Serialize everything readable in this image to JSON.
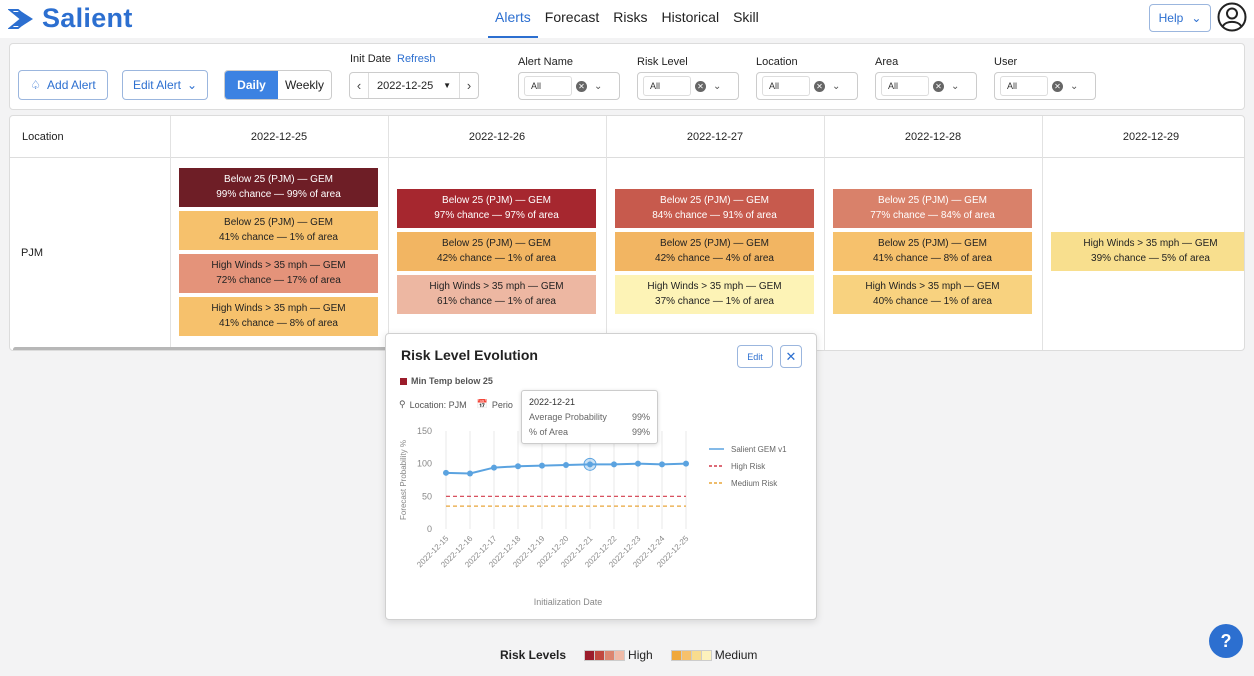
{
  "app": {
    "brand": "Salient",
    "accent": "#2c6fd0"
  },
  "nav": {
    "items": [
      "Alerts",
      "Forecast",
      "Risks",
      "Historical",
      "Skill"
    ],
    "active": "Alerts"
  },
  "header": {
    "help_label": "Help"
  },
  "toolbar": {
    "add_alert": "Add Alert",
    "edit_alert": "Edit Alert",
    "daily": "Daily",
    "weekly": "Weekly",
    "init_date_label": "Init Date",
    "refresh": "Refresh",
    "init_date_value": "2022-12-25",
    "filters": [
      {
        "label": "Alert Name",
        "value": "All"
      },
      {
        "label": "Risk Level",
        "value": "All"
      },
      {
        "label": "Location",
        "value": "All"
      },
      {
        "label": "Area",
        "value": "All"
      },
      {
        "label": "User",
        "value": "All"
      }
    ]
  },
  "table": {
    "location_header": "Location",
    "dates": [
      "2022-12-25",
      "2022-12-26",
      "2022-12-27",
      "2022-12-28",
      "2022-12-29"
    ],
    "row_location": "PJM",
    "cells": [
      [
        {
          "title": "Below 25 (PJM) — GEM",
          "detail": "99% chance — 99% of area",
          "bg": "#6e1e26",
          "fg": "#ffffff"
        },
        {
          "title": "Below 25 (PJM) — GEM",
          "detail": "41% chance — 1% of area",
          "bg": "#f6c16c",
          "fg": "#222222"
        },
        {
          "title": "High Winds > 35 mph — GEM",
          "detail": "72% chance — 17% of area",
          "bg": "#e4937a",
          "fg": "#222222"
        },
        {
          "title": "High Winds > 35 mph — GEM",
          "detail": "41% chance — 8% of area",
          "bg": "#f6c16c",
          "fg": "#222222"
        }
      ],
      [
        {
          "title": "Below 25 (PJM) — GEM",
          "detail": "97% chance — 97% of area",
          "bg": "#a6272f",
          "fg": "#ffffff"
        },
        {
          "title": "Below 25 (PJM) — GEM",
          "detail": "42% chance — 1% of area",
          "bg": "#f2b562",
          "fg": "#222222"
        },
        {
          "title": "High Winds > 35 mph — GEM",
          "detail": "61% chance — 1% of area",
          "bg": "#edb7a2",
          "fg": "#222222"
        }
      ],
      [
        {
          "title": "Below 25 (PJM) — GEM",
          "detail": "84% chance — 91% of area",
          "bg": "#c75a4d",
          "fg": "#ffffff"
        },
        {
          "title": "Below 25 (PJM) — GEM",
          "detail": "42% chance — 4% of area",
          "bg": "#f2b562",
          "fg": "#222222"
        },
        {
          "title": "High Winds > 35 mph — GEM",
          "detail": "37% chance — 1% of area",
          "bg": "#fdf3b6",
          "fg": "#222222"
        }
      ],
      [
        {
          "title": "Below 25 (PJM) — GEM",
          "detail": "77% chance — 84% of area",
          "bg": "#d9816a",
          "fg": "#ffffff"
        },
        {
          "title": "Below 25 (PJM) — GEM",
          "detail": "41% chance — 8% of area",
          "bg": "#f6c16c",
          "fg": "#222222"
        },
        {
          "title": "High Winds > 35 mph — GEM",
          "detail": "40% chance — 1% of area",
          "bg": "#f8d27f",
          "fg": "#222222"
        }
      ],
      [
        {
          "title": "High Winds > 35 mph — GEM",
          "detail": "39% chance — 5% of area",
          "bg": "#f8df8e",
          "fg": "#222222"
        }
      ]
    ]
  },
  "popup": {
    "title": "Risk Level Evolution",
    "edit": "Edit",
    "subtitle": "Min Temp below 25",
    "location": "Location: PJM",
    "period": "Perio",
    "tooltip": {
      "date": "2022-12-21",
      "avg_label": "Average Probability",
      "avg_value": "99%",
      "area_label": "% of Area",
      "area_value": "99%"
    }
  },
  "chart_data": {
    "type": "line",
    "title": "",
    "xlabel": "Initialization Date",
    "ylabel": "Forecast Probability %",
    "ylim": [
      0,
      150
    ],
    "yticks": [
      0,
      50,
      100,
      150
    ],
    "x": [
      "2022-12-15",
      "2022-12-16",
      "2022-12-17",
      "2022-12-18",
      "2022-12-19",
      "2022-12-20",
      "2022-12-21",
      "2022-12-22",
      "2022-12-23",
      "2022-12-24",
      "2022-12-25"
    ],
    "series": [
      {
        "name": "Salient GEM v1",
        "values": [
          86,
          85,
          94,
          96,
          97,
          98,
          99,
          99,
          100,
          99,
          100
        ],
        "color": "#5ba3e0",
        "style": "solid"
      },
      {
        "name": "High Risk",
        "values": [
          50,
          50,
          50,
          50,
          50,
          50,
          50,
          50,
          50,
          50,
          50
        ],
        "color": "#d23a4a",
        "style": "dashed"
      },
      {
        "name": "Medium Risk",
        "values": [
          35,
          35,
          35,
          35,
          35,
          35,
          35,
          35,
          35,
          35,
          35
        ],
        "color": "#e8a53a",
        "style": "dashed"
      }
    ],
    "highlight_index": 6
  },
  "legend": {
    "title": "Risk Levels",
    "high_label": "High",
    "medium_label": "Medium",
    "high_colors": [
      "#9b1c2b",
      "#c1483f",
      "#dc8670",
      "#f0bba8"
    ],
    "medium_colors": [
      "#f0a83c",
      "#f6c16c",
      "#f9dc8e",
      "#fdf2bd"
    ]
  },
  "help_fab": "?"
}
